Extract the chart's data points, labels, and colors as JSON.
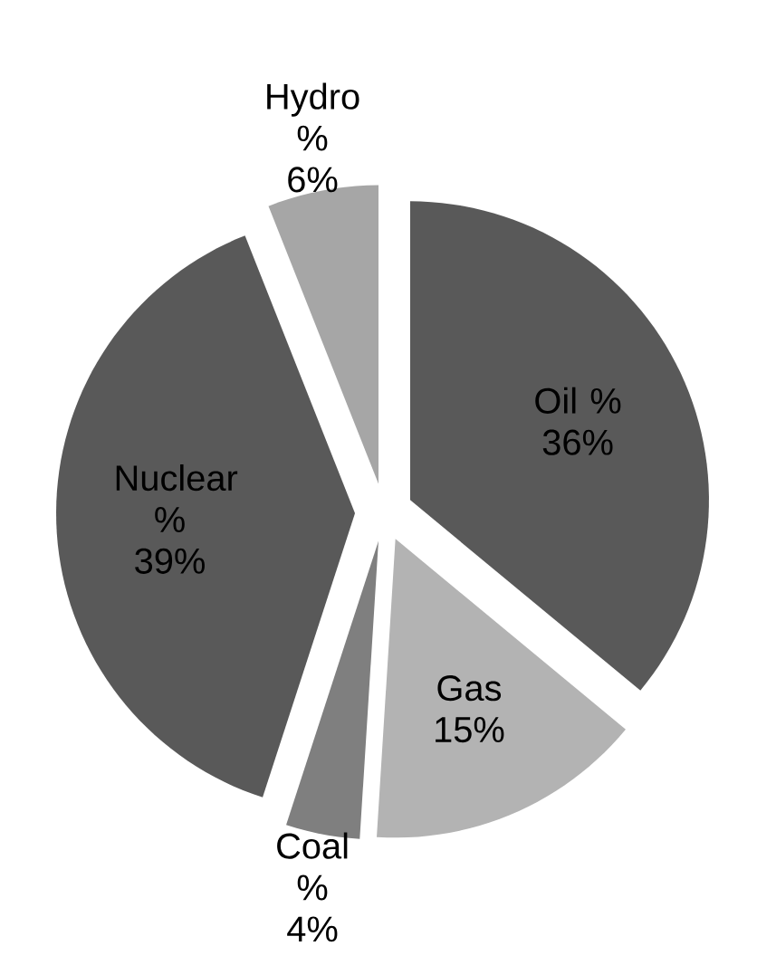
{
  "chart_data": {
    "type": "pie",
    "categories": [
      "Oil %",
      "Gas",
      "Coal %",
      "Nuclear %",
      "Hydro %"
    ],
    "values": [
      36,
      15,
      4,
      39,
      6
    ],
    "value_labels": [
      "36%",
      "15%",
      "4%",
      "39%",
      "6%"
    ],
    "colors": [
      "#595959",
      "#b3b3b3",
      "#7f7f7f",
      "#595959",
      "#a6a6a6"
    ]
  }
}
